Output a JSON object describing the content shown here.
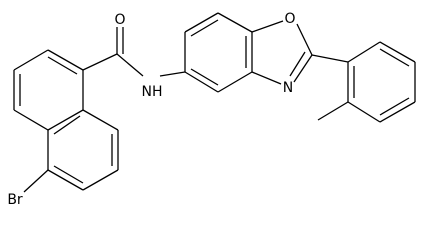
{
  "atoms": [
    {
      "label": "O"
    },
    {
      "label": "NH"
    },
    {
      "label": "O"
    },
    {
      "label": "N"
    },
    {
      "label": "Br"
    }
  ]
}
